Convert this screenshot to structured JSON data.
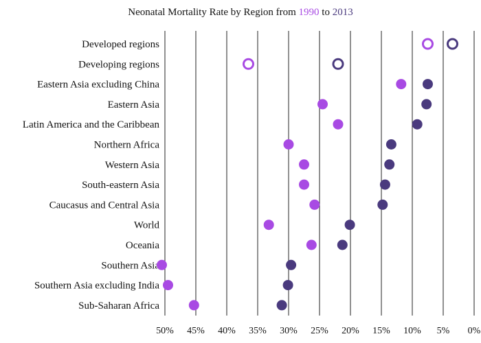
{
  "chart_data": {
    "type": "scatter",
    "title": {
      "prefix": "Neonatal Mortality Rate by Region from",
      "start": "1990",
      "joiner": "to",
      "end": "2013"
    },
    "xlabel": "",
    "ylabel": "",
    "x_axis": {
      "min": 0,
      "max": 50,
      "reversed": true,
      "ticks": [
        50,
        45,
        40,
        35,
        30,
        25,
        20,
        15,
        10,
        5,
        0
      ],
      "tick_labels": [
        "50%",
        "45%",
        "40%",
        "35%",
        "30%",
        "25%",
        "20%",
        "15%",
        "10%",
        "5%",
        "0%"
      ],
      "grid": true
    },
    "colors": {
      "1990": "#a84ae3",
      "2013": "#4a3a7e"
    },
    "categories": [
      "Developed regions",
      "Developing regions",
      "Eastern Asia excluding China",
      "Eastern Asia",
      "Latin America and the Caribbean",
      "Northern Africa",
      "Western Asia",
      "South-eastern Asia",
      "Caucasus and Central Asia",
      "World",
      "Oceania",
      "Southern Asia",
      "Southern Asia excluding India",
      "Sub-Saharan Africa"
    ],
    "hollow_categories": [
      "Developed regions",
      "Developing regions"
    ],
    "series": [
      {
        "name": "1990",
        "values": [
          7.5,
          36.5,
          11.8,
          24.5,
          22.0,
          30.0,
          27.5,
          27.5,
          25.8,
          33.2,
          26.3,
          50.5,
          49.5,
          45.3
        ]
      },
      {
        "name": "2013",
        "values": [
          3.5,
          22.0,
          7.5,
          7.7,
          9.2,
          13.4,
          13.7,
          14.4,
          14.8,
          20.1,
          21.3,
          29.6,
          30.1,
          31.1
        ]
      }
    ]
  }
}
